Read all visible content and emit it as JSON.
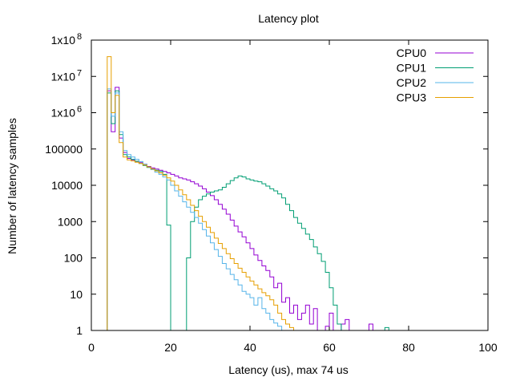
{
  "chart_data": {
    "type": "line",
    "step": true,
    "title": "Latency plot",
    "xlabel": "Latency (us), max 74 us",
    "ylabel": "Number of latency samples",
    "xlim": [
      0,
      100
    ],
    "ylim": [
      1,
      100000000
    ],
    "y_log": true,
    "grid": false,
    "legend_position": "top-right",
    "x_ticks": [
      0,
      20,
      40,
      60,
      80,
      100
    ],
    "y_ticks": [
      {
        "value": 1,
        "label": "1",
        "exp": ""
      },
      {
        "value": 10,
        "label": "10",
        "exp": ""
      },
      {
        "value": 100,
        "label": "100",
        "exp": ""
      },
      {
        "value": 1000,
        "label": "1000",
        "exp": ""
      },
      {
        "value": 10000,
        "label": "10000",
        "exp": ""
      },
      {
        "value": 100000,
        "label": "100000",
        "exp": ""
      },
      {
        "value": 1000000,
        "label": "1x10",
        "exp": "6"
      },
      {
        "value": 10000000,
        "label": "1x10",
        "exp": "7"
      },
      {
        "value": 100000000,
        "label": "1x10",
        "exp": "8"
      }
    ],
    "series": [
      {
        "name": "CPU0",
        "color": "#9400d3",
        "points": [
          [
            3,
            1
          ],
          [
            4,
            4000000
          ],
          [
            5,
            300000
          ],
          [
            6,
            5000000
          ],
          [
            7,
            200000
          ],
          [
            8,
            80000
          ],
          [
            9,
            55000
          ],
          [
            10,
            50000
          ],
          [
            11,
            45000
          ],
          [
            12,
            42000
          ],
          [
            13,
            38000
          ],
          [
            14,
            33000
          ],
          [
            15,
            30000
          ],
          [
            16,
            28000
          ],
          [
            17,
            26000
          ],
          [
            18,
            24000
          ],
          [
            19,
            22000
          ],
          [
            20,
            20000
          ],
          [
            21,
            18000
          ],
          [
            22,
            16000
          ],
          [
            23,
            15000
          ],
          [
            24,
            14000
          ],
          [
            25,
            12500
          ],
          [
            26,
            11000
          ],
          [
            27,
            9500
          ],
          [
            28,
            8000
          ],
          [
            29,
            6500
          ],
          [
            30,
            5200
          ],
          [
            31,
            4000
          ],
          [
            32,
            3000
          ],
          [
            33,
            2200
          ],
          [
            34,
            1600
          ],
          [
            35,
            1100
          ],
          [
            36,
            750
          ],
          [
            37,
            520
          ],
          [
            38,
            380
          ],
          [
            39,
            260
          ],
          [
            40,
            180
          ],
          [
            41,
            120
          ],
          [
            42,
            85
          ],
          [
            43,
            60
          ],
          [
            44,
            45
          ],
          [
            45,
            30
          ],
          [
            46,
            15
          ],
          [
            47,
            20
          ],
          [
            48,
            6
          ],
          [
            49,
            8
          ],
          [
            50,
            3
          ],
          [
            51,
            5
          ],
          [
            52,
            2
          ],
          [
            53,
            3
          ],
          [
            54,
            5
          ],
          [
            55,
            1.5
          ],
          [
            56,
            4
          ],
          [
            57,
            1
          ],
          [
            58,
            1
          ],
          [
            59,
            1.3
          ],
          [
            60,
            3
          ],
          [
            61,
            1
          ],
          [
            62,
            1
          ],
          [
            63,
            1.5
          ],
          [
            64,
            2
          ],
          [
            65,
            1
          ],
          [
            70,
            1.5
          ],
          [
            71,
            1
          ],
          [
            74,
            1
          ]
        ]
      },
      {
        "name": "CPU1",
        "color": "#009e73",
        "points": [
          [
            3,
            1
          ],
          [
            4,
            3500000
          ],
          [
            5,
            500000
          ],
          [
            6,
            4000000
          ],
          [
            7,
            250000
          ],
          [
            8,
            70000
          ],
          [
            9,
            60000
          ],
          [
            10,
            52000
          ],
          [
            11,
            46000
          ],
          [
            12,
            40000
          ],
          [
            13,
            35000
          ],
          [
            14,
            31000
          ],
          [
            15,
            28000
          ],
          [
            16,
            26000
          ],
          [
            17,
            24000
          ],
          [
            18,
            20000
          ],
          [
            19,
            800
          ],
          [
            20,
            1
          ],
          [
            21,
            1
          ],
          [
            22,
            1
          ],
          [
            23,
            1
          ],
          [
            24,
            100
          ],
          [
            25,
            1000
          ],
          [
            26,
            2500
          ],
          [
            27,
            4000
          ],
          [
            28,
            5000
          ],
          [
            29,
            5800
          ],
          [
            30,
            6500
          ],
          [
            31,
            7000
          ],
          [
            32,
            7500
          ],
          [
            33,
            8800
          ],
          [
            34,
            11000
          ],
          [
            35,
            13500
          ],
          [
            36,
            16000
          ],
          [
            37,
            18000
          ],
          [
            38,
            17000
          ],
          [
            39,
            15000
          ],
          [
            40,
            14000
          ],
          [
            41,
            13000
          ],
          [
            42,
            12500
          ],
          [
            43,
            11000
          ],
          [
            44,
            9500
          ],
          [
            45,
            8000
          ],
          [
            46,
            7000
          ],
          [
            47,
            5800
          ],
          [
            48,
            4500
          ],
          [
            49,
            3000
          ],
          [
            50,
            2000
          ],
          [
            51,
            1300
          ],
          [
            52,
            900
          ],
          [
            53,
            650
          ],
          [
            54,
            450
          ],
          [
            55,
            320
          ],
          [
            56,
            200
          ],
          [
            57,
            130
          ],
          [
            58,
            80
          ],
          [
            59,
            40
          ],
          [
            60,
            15
          ],
          [
            61,
            5
          ],
          [
            62,
            1.5
          ],
          [
            63,
            1
          ],
          [
            74,
            1.2
          ],
          [
            75,
            1
          ]
        ]
      },
      {
        "name": "CPU2",
        "color": "#56b4e9",
        "points": [
          [
            3,
            1
          ],
          [
            4,
            4500000
          ],
          [
            5,
            800000
          ],
          [
            6,
            3500000
          ],
          [
            7,
            300000
          ],
          [
            8,
            90000
          ],
          [
            9,
            70000
          ],
          [
            10,
            60000
          ],
          [
            11,
            52000
          ],
          [
            12,
            45000
          ],
          [
            13,
            38000
          ],
          [
            14,
            32000
          ],
          [
            15,
            27000
          ],
          [
            16,
            23000
          ],
          [
            17,
            20000
          ],
          [
            18,
            17000
          ],
          [
            19,
            14000
          ],
          [
            20,
            10000
          ],
          [
            21,
            7000
          ],
          [
            22,
            5000
          ],
          [
            23,
            3500
          ],
          [
            24,
            2500
          ],
          [
            25,
            1800
          ],
          [
            26,
            1300
          ],
          [
            27,
            900
          ],
          [
            28,
            600
          ],
          [
            29,
            400
          ],
          [
            30,
            260
          ],
          [
            31,
            170
          ],
          [
            32,
            110
          ],
          [
            33,
            70
          ],
          [
            34,
            50
          ],
          [
            35,
            35
          ],
          [
            36,
            25
          ],
          [
            37,
            18
          ],
          [
            38,
            12
          ],
          [
            39,
            10
          ],
          [
            40,
            8
          ],
          [
            41,
            5
          ],
          [
            42,
            8
          ],
          [
            43,
            4
          ],
          [
            44,
            3
          ],
          [
            45,
            2
          ],
          [
            46,
            1.6
          ],
          [
            47,
            1.3
          ],
          [
            48,
            1
          ],
          [
            49,
            1
          ],
          [
            50,
            1
          ]
        ]
      },
      {
        "name": "CPU3",
        "color": "#e69f00",
        "points": [
          [
            3,
            1
          ],
          [
            4,
            35000000
          ],
          [
            5,
            1000000
          ],
          [
            6,
            3000000
          ],
          [
            7,
            150000
          ],
          [
            8,
            60000
          ],
          [
            9,
            50000
          ],
          [
            10,
            47000
          ],
          [
            11,
            43000
          ],
          [
            12,
            40000
          ],
          [
            13,
            36000
          ],
          [
            14,
            32000
          ],
          [
            15,
            28000
          ],
          [
            16,
            25000
          ],
          [
            17,
            22000
          ],
          [
            18,
            19000
          ],
          [
            19,
            16000
          ],
          [
            20,
            13000
          ],
          [
            21,
            10000
          ],
          [
            22,
            7500
          ],
          [
            23,
            5500
          ],
          [
            24,
            4000
          ],
          [
            25,
            2800
          ],
          [
            26,
            2000
          ],
          [
            27,
            1400
          ],
          [
            28,
            1000
          ],
          [
            29,
            700
          ],
          [
            30,
            500
          ],
          [
            31,
            350
          ],
          [
            32,
            250
          ],
          [
            33,
            180
          ],
          [
            34,
            130
          ],
          [
            35,
            95
          ],
          [
            36,
            70
          ],
          [
            37,
            52
          ],
          [
            38,
            40
          ],
          [
            39,
            30
          ],
          [
            40,
            23
          ],
          [
            41,
            18
          ],
          [
            42,
            14
          ],
          [
            43,
            11
          ],
          [
            44,
            9
          ],
          [
            45,
            7
          ],
          [
            46,
            5
          ],
          [
            47,
            3
          ],
          [
            48,
            2
          ],
          [
            49,
            1.5
          ],
          [
            50,
            1.2
          ],
          [
            51,
            1
          ]
        ]
      }
    ]
  }
}
